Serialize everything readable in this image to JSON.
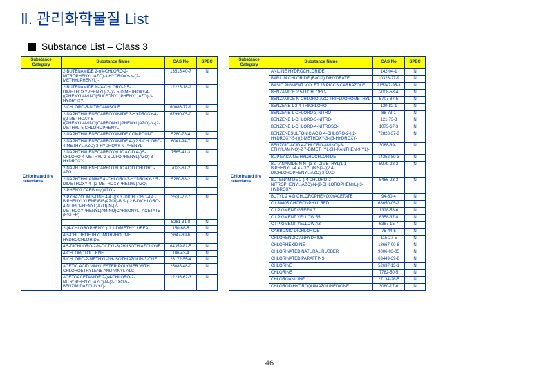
{
  "title": "Ⅱ. 관리화학물질 List",
  "subtitle": "Substance List – Class 3",
  "page": "46",
  "headers": [
    "Substance Category",
    "Substance Name",
    "CAS No",
    "SPEC"
  ],
  "category": "Chlorinated fire retardants",
  "colors": {
    "heading": "#003399",
    "border": "#003399",
    "header_bg": "#fffb00"
  },
  "left": [
    {
      "n": "2-BUTENAMIDE 2-((4-CHLORO-2-NITROPHENYL)AZO)-3-HYDROXY-N-(2-METHYLPHENYL)-",
      "c": "13515-40-7",
      "s": "N"
    },
    {
      "n": "2-BUTENAMIDE N-(4-CHLORO-2 5-DIMETHOXYPHENYL)-2-((2 5-DIMETHOXY-4-((PHENYLAMINO)SULFONYL)PHENYL)AZO)-3-HYDROXY-",
      "c": "12225-18-2",
      "s": "N"
    },
    {
      "n": "2-CHLORO-5-NITROANISOLE",
      "c": "60686-77-9",
      "s": "N"
    },
    {
      "n": "2-NAPHTHALENECARBOXAMIDE 3-HYDROXY-4-((2-METHOXY-5-((PHENYLAMINO)CARBONYL)PHENYL)AZO)-N-(2-METHYL-5-CHLOROPHENYL)-",
      "c": "67990-05-0",
      "s": "N"
    },
    {
      "n": "2-NAPHTHALENECARBOXAMIDE COMPOUND",
      "c": "5280-78-4",
      "s": "N"
    },
    {
      "n": "2-NAPHTHALENECARBOXAMIDE 4-((2 5-CHLORO-4-METHYL)AZO)-3-HYDROXY-N-PHENYL-",
      "c": "6041-94-7",
      "s": "N"
    },
    {
      "n": "2-NAPHTHALENECARBOXYLIC ACID 4-((5-CHLORO-4-METHYL-2-SULFOPHENYL)AZO)-3-HYDROXY-",
      "c": "7585-41-3",
      "s": "N"
    },
    {
      "n": "2-NAPHTHALENECARBOXYLIC ACID CHLORO-AZO",
      "c": "7023-61-2",
      "s": "N"
    },
    {
      "n": "2-NAPHTHYLAMINE 4 -CHLORO-3-HYDROXY-2 5 -DIMETHOXY-4-((2-METHOXYPHENYL)AZO)-",
      "c": "5280-68-2",
      "s": "N"
    },
    {
      "n": "2-PHENYLCARBonyl)AZO)-",
      "c": "",
      "s": ""
    },
    {
      "n": "2-PYRAZOLIN-5-ONE 4 4 -((3 3 -DICHLORO-4 4 -BIPHENYLYLENE)BIS(AZO))-BIS-(-2 6-DICHLORO-4-NITROPHENYL)AZO)-N-(2-METHOXYPHENYL)AMINO)CARBONYL)-ACETATE (ESTER)",
      "c": "3520-72-7",
      "s": "N"
    },
    {
      "n": "",
      "c": "5281-31-8",
      "s": "N"
    },
    {
      "n": "2-(4-CHLOROPHENYL)-1 1-DIMETHYLUREA",
      "c": "150-68-5",
      "s": "N"
    },
    {
      "n": "4(5-CHLOROETHYL)MORPHOLINE HYDROCHLORIDE",
      "c": "3647-69-6",
      "s": "N"
    },
    {
      "n": "4 5-DICHLORO-2-N-OCTYL-3(2H)ISOTHIAZOLONE",
      "c": "64359-81-5",
      "s": "N"
    },
    {
      "n": "4-CHLOROTOLUENE",
      "c": "106-43-4",
      "s": "N"
    },
    {
      "n": "5-CHLORO-2-METHYL-2H-ISOTHIAZOLIN-3-ONE",
      "c": "26172-55-4",
      "s": "N"
    },
    {
      "n": "ACETIC ACID VINYL ESTER POLYMER WITH CHLOROETHYLENE AND VINYL ALC",
      "c": "25086-48-0",
      "s": "N"
    },
    {
      "n": "ACETOACETAMIDE 2-((4-CHLORO-2-NITROPHENYL)AZO)-N-(2-OXO-5-BENZIMIDAZOLINYL)-",
      "c": "12236-62-3",
      "s": "N"
    }
  ],
  "right": [
    {
      "n": "ANILINE HYDROCHLORIDE",
      "c": "142-04-1",
      "s": "N"
    },
    {
      "n": "BARIUM CHLORIDE (BaCl2) DIHYDRATE",
      "c": "10326-27-9",
      "s": "N"
    },
    {
      "n": "BASIC PIGMENT VIOLET 23 PICCS CARBAZOLE",
      "c": "215247-95-3",
      "s": "N"
    },
    {
      "n": "BENZAMIDE 2 5-DICHLORO-",
      "c": "2008-58-4",
      "s": "N"
    },
    {
      "n": "BENZAMIDE N-CHLORO-AZO-TRIFLUOROMETHYL",
      "c": "5707-87-5",
      "s": "N"
    },
    {
      "n": "BENZENE 1 2 4-TRICHLORO-",
      "c": "120-82-1",
      "s": "N"
    },
    {
      "n": "BENZENE 1-CHLORO-3-NITRO",
      "c": "88-73-1",
      "s": "N"
    },
    {
      "n": "BENZENE 1-CHLORO-3-NITRO-",
      "c": "121-73-3",
      "s": "N"
    },
    {
      "n": "BENZENE 1-CHLORO-4-NITROSO-",
      "c": "1073-67-3",
      "s": "N"
    },
    {
      "n": "BENZENESULFONIC ACID 4-CHLORO-2-((2-HYDROXY-5-(((2-METHOXY-3-((3-HYDROXY-",
      "c": "72828-37-3",
      "s": "N"
    },
    {
      "n": "BENZOIC ACID 4-CHLORO-AMINO)-3-ETHYLAMINO)-2 7-DIMETHYL-3H-XANTHEN-9-YL)-",
      "c": "3068-39-1",
      "s": "N"
    },
    {
      "n": "BUPIVACAINE HYDROCHLORIDE",
      "c": "14252-80-3",
      "s": "N"
    },
    {
      "n": "BUTANAMIDE N N -(3 3 -DIMETHYL(1 1 -BIPHENYL)-4 4 -DIYL)BIS(2-((2 4-DICHLOROPHENYL)AZO)-3-OXO-",
      "c": "5979-28-2",
      "s": "N"
    },
    {
      "n": "BUTENAMIDE 2-((4-CHLORO-2-NITROPHENYL)AZO)-N-(2-CHLOROPHENYL)-3-HYDROXY-",
      "c": "6486-23-3",
      "s": "N"
    },
    {
      "n": "BUTYL 2 4-DICHLOROPHENOXYACETATE",
      "c": "94-80-4",
      "s": "N"
    },
    {
      "n": "C I 30805 CHORONPHYL RED",
      "c": "68650-05-2",
      "s": "N"
    },
    {
      "n": "C I PIGMENT GREEN 7",
      "c": "1328-53-6",
      "s": "N"
    },
    {
      "n": "C I PIGMENT YELLOW 55",
      "c": "6358-37-8",
      "s": "N"
    },
    {
      "n": "C I PIGMENT YELLOW A3",
      "c": "6387-15-7",
      "s": "N"
    },
    {
      "n": "CARBONIC DICHLORIDE",
      "c": "75-44-5",
      "s": "N"
    },
    {
      "n": "CHLORENDIC ANHYDRIDE",
      "c": "115-27-5",
      "s": "N"
    },
    {
      "n": "CHLORHEXIDINE",
      "c": "18667-00-8",
      "s": "N"
    },
    {
      "n": "CHLORINATED NATURAL RUBBER",
      "c": "9006-03-05",
      "s": "N"
    },
    {
      "n": "CHLORINATED PARAFFINS",
      "c": "63449-39-8",
      "s": "N"
    },
    {
      "n": "CHLORINE",
      "c": "52637-13-1",
      "s": "N"
    },
    {
      "n": "CHLORINE",
      "c": "7782-50-5",
      "s": "N"
    },
    {
      "n": "CHLOROANILINE",
      "c": "27134-26-5",
      "s": "N"
    },
    {
      "n": "CHLORODIHYDROQUINAZOLINEDIONE",
      "c": "3080-17-6",
      "s": "N"
    }
  ]
}
